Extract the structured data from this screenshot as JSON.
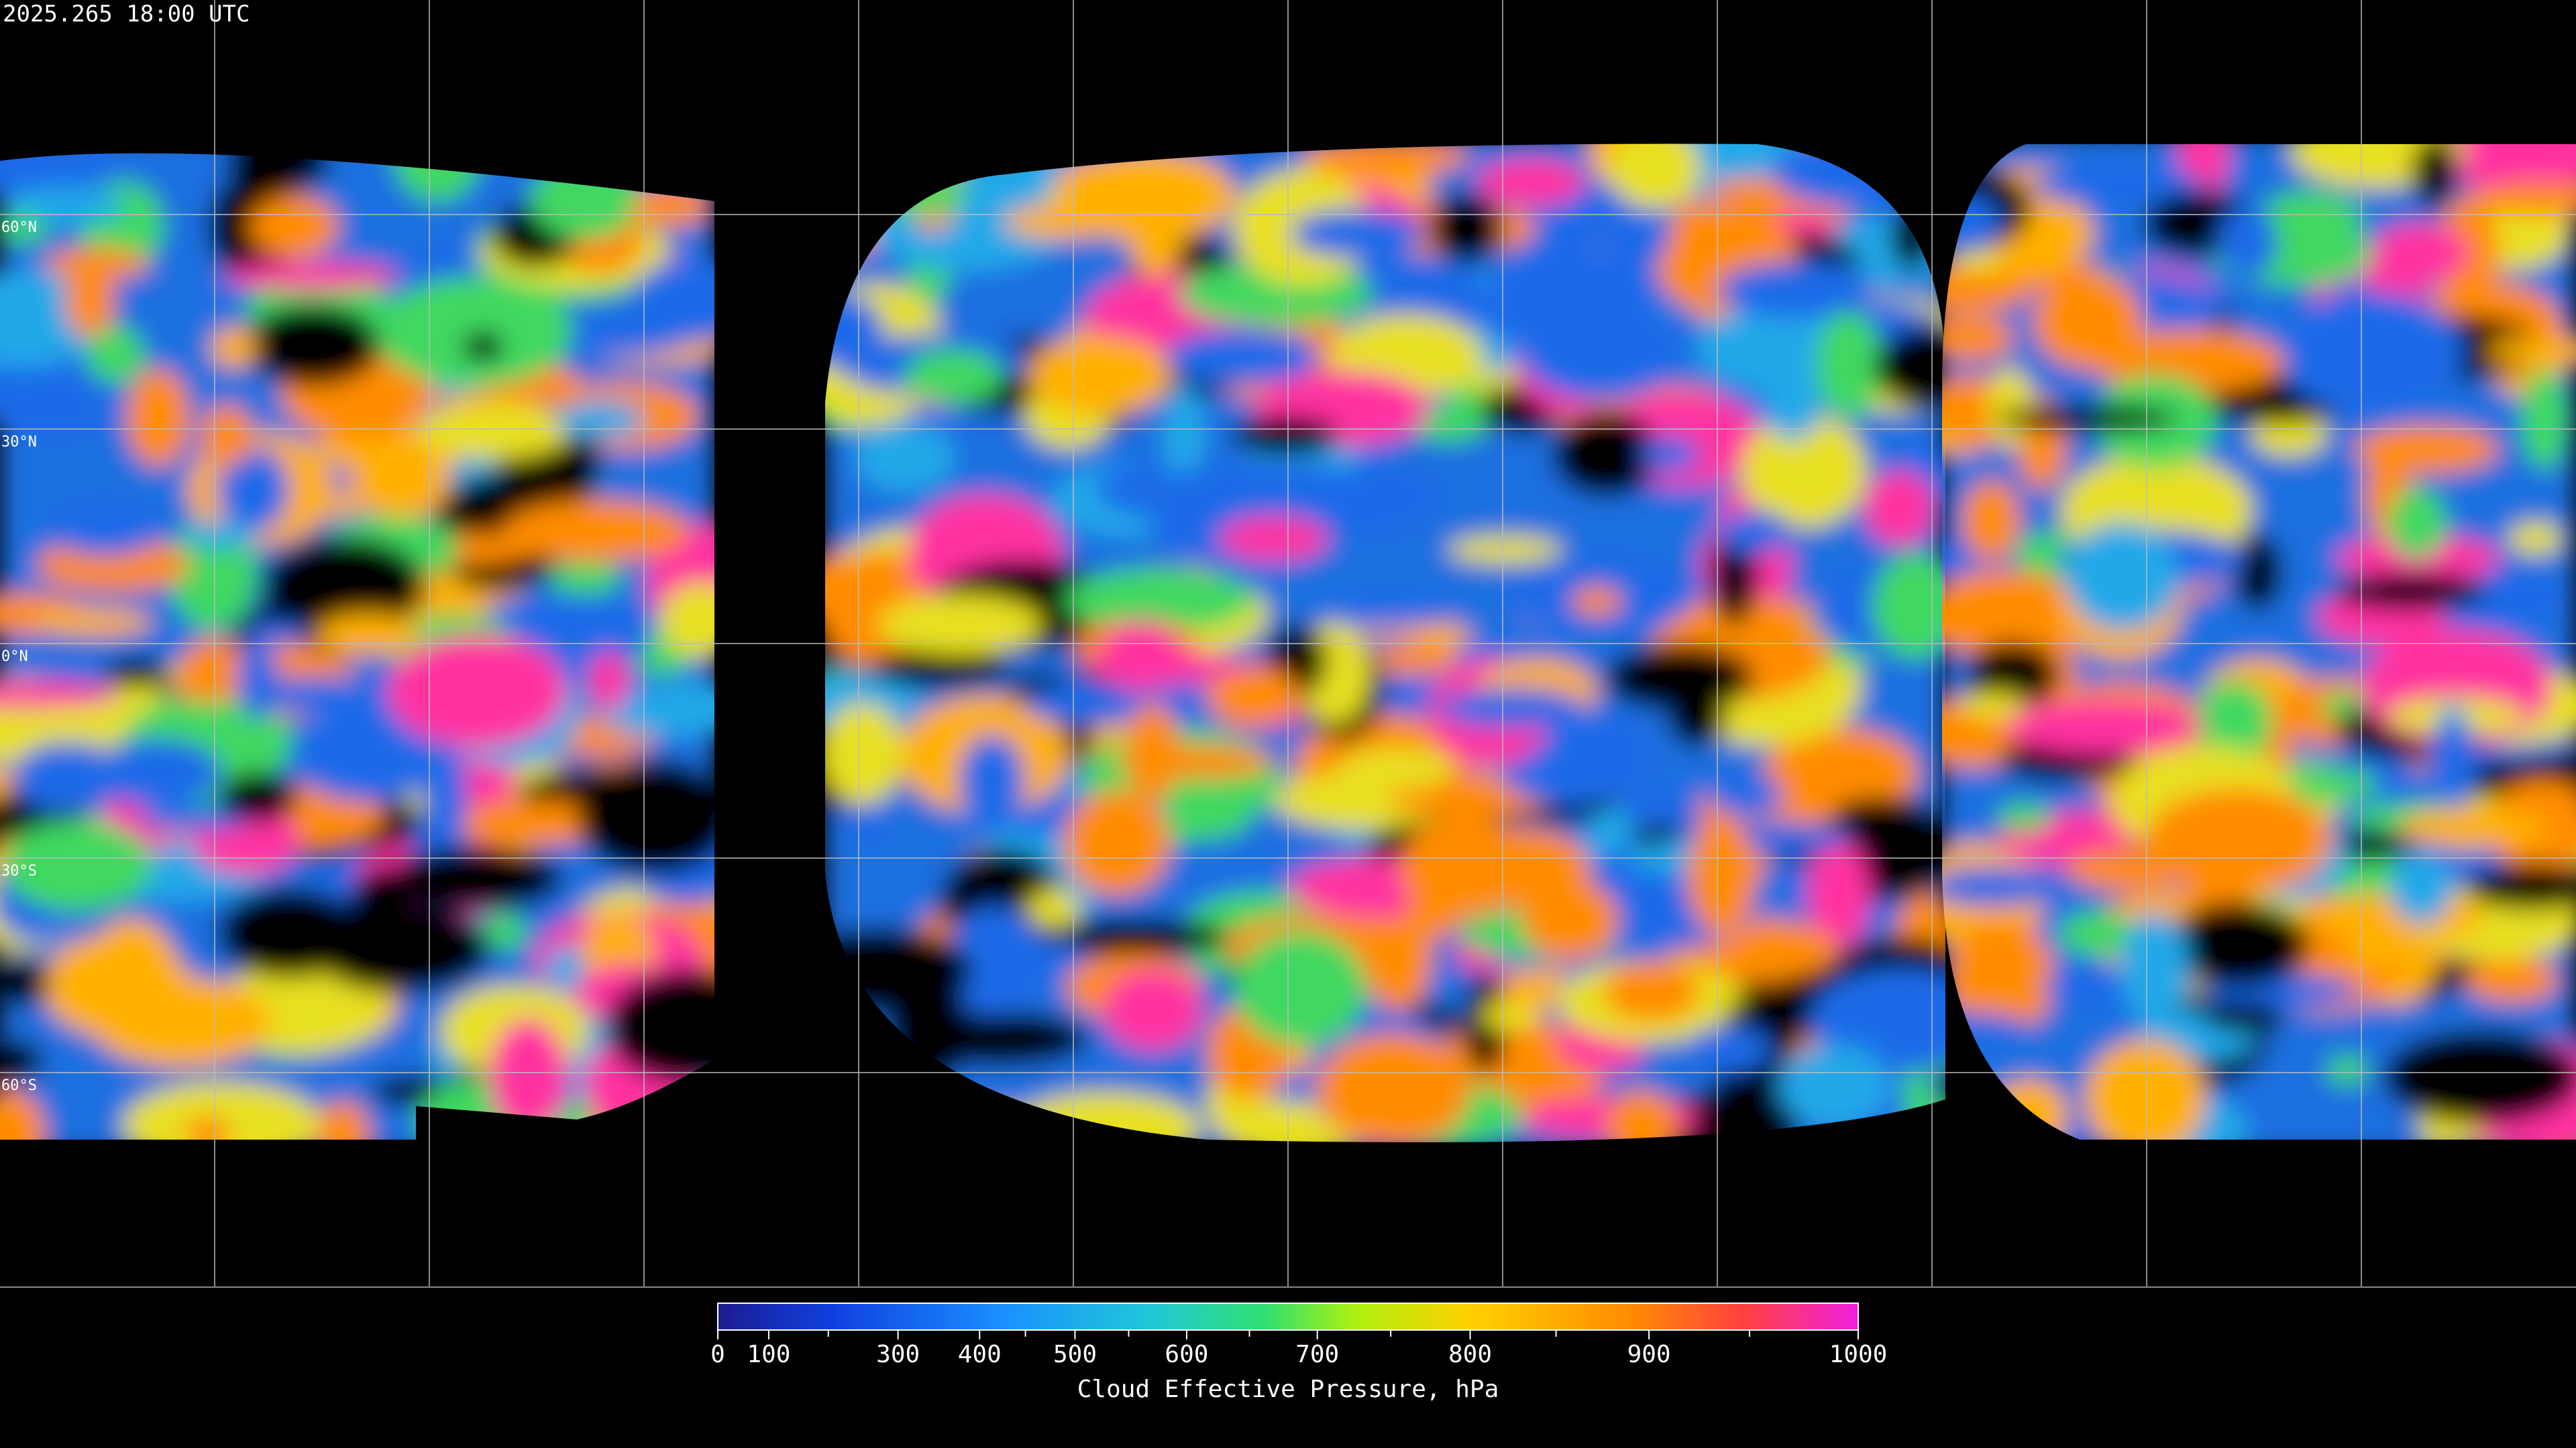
{
  "title": "2025.265 18:00 UTC",
  "lat_labels": [
    "60°N",
    "30°N",
    "0°N",
    "30°S",
    "60°S"
  ],
  "colorbar": {
    "label": "Cloud Effective Pressure, hPa",
    "range": [
      0,
      1000
    ],
    "ticks": [
      0,
      100,
      300,
      400,
      500,
      600,
      700,
      800,
      900,
      1000
    ],
    "minor_ticks": [
      200,
      450,
      550,
      650,
      750,
      850,
      950
    ]
  }
}
